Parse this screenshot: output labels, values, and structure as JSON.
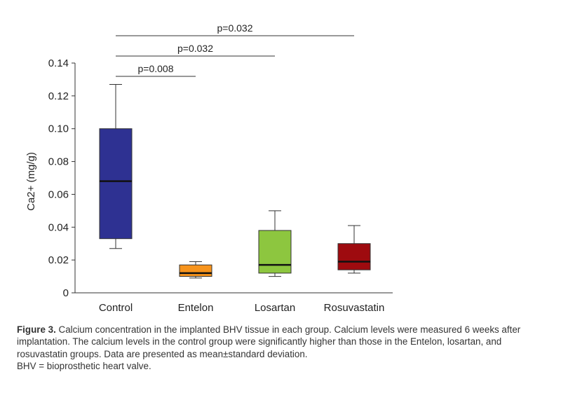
{
  "chart_data": {
    "type": "box",
    "ylabel": "Ca2+ (mg/g)",
    "ylim": [
      0,
      0.14
    ],
    "yticks": [
      0,
      0.02,
      0.04,
      0.06,
      0.08,
      0.1,
      0.12,
      0.14
    ],
    "ytick_labels": [
      "0",
      "0.02",
      "0.04",
      "0.06",
      "0.08",
      "0.10",
      "0.12",
      "0.14"
    ],
    "categories": [
      "Control",
      "Entelon",
      "Losartan",
      "Rosuvastatin"
    ],
    "boxes": [
      {
        "name": "Control",
        "min": 0.027,
        "q1": 0.033,
        "median": 0.068,
        "q3": 0.1,
        "max": 0.127,
        "color": "#2e3192"
      },
      {
        "name": "Entelon",
        "min": 0.009,
        "q1": 0.01,
        "median": 0.012,
        "q3": 0.017,
        "max": 0.019,
        "color": "#f7941d"
      },
      {
        "name": "Losartan",
        "min": 0.01,
        "q1": 0.012,
        "median": 0.017,
        "q3": 0.038,
        "max": 0.05,
        "color": "#8dc63f"
      },
      {
        "name": "Rosuvastatin",
        "min": 0.012,
        "q1": 0.014,
        "median": 0.019,
        "q3": 0.03,
        "max": 0.041,
        "color": "#9e0b0f"
      }
    ],
    "significance": [
      {
        "from": "Control",
        "to": "Entelon",
        "label": "p=0.008"
      },
      {
        "from": "Control",
        "to": "Losartan",
        "label": "p=0.032"
      },
      {
        "from": "Control",
        "to": "Rosuvastatin",
        "label": "p=0.032"
      }
    ],
    "grid": false,
    "legend": "none"
  },
  "caption": {
    "figure_label": "Figure 3.",
    "text": " Calcium concentration in the implanted BHV tissue in each group. Calcium levels were measured 6 weeks after implantation. The calcium levels in the control group were significantly higher than those in the Entelon, losartan, and rosuvastatin groups. Data are presented as mean±standard deviation.",
    "abbreviation": "BHV = bioprosthetic heart valve."
  }
}
